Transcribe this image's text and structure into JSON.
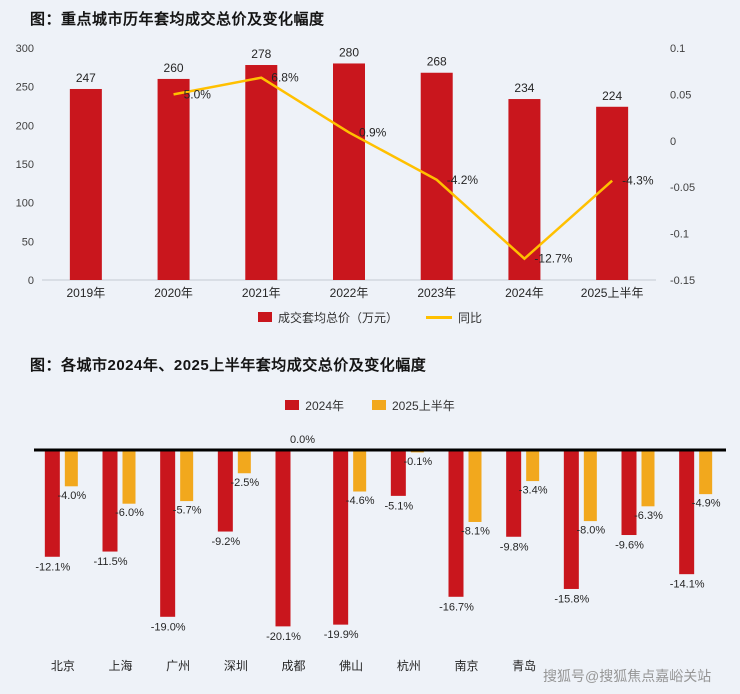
{
  "page": {
    "background": "#eef2f8",
    "watermark": "搜狐号@搜狐焦点嘉峪关站"
  },
  "chart_data": [
    {
      "type": "bar+line",
      "title": "图：重点城市历年套均成交总价及变化幅度",
      "categories": [
        "2019年",
        "2020年",
        "2021年",
        "2022年",
        "2023年",
        "2024年",
        "2025上半年"
      ],
      "bar_series": {
        "name": "成交套均总价（万元）",
        "color": "#c9161d",
        "values": [
          247,
          260,
          278,
          280,
          268,
          234,
          224
        ]
      },
      "line_series": {
        "name": "同比",
        "color": "#ffc000",
        "values": [
          null,
          0.05,
          0.068,
          0.009,
          -0.042,
          -0.127,
          -0.043
        ],
        "labels": [
          "",
          "5.0%",
          "6.8%",
          "0.9%",
          "-4.2%",
          "-12.7%",
          "-4.3%"
        ]
      },
      "left_axis": {
        "min": 0,
        "max": 300,
        "step": 50
      },
      "right_axis": {
        "min": -0.15,
        "max": 0.1,
        "ticks": [
          "0.1",
          "0.05",
          "0",
          "-0.05",
          "-0.1",
          "-0.15"
        ]
      },
      "legend_position": "bottom",
      "grid": false
    },
    {
      "type": "bar",
      "title": "图：各城市2024年、2025上半年套均成交总价及变化幅度",
      "categories": [
        "北京",
        "上海",
        "广州",
        "深圳",
        "成都",
        "佛山",
        "杭州",
        "南京",
        "青岛",
        "",
        "",
        ""
      ],
      "series": [
        {
          "name": "2024年",
          "color": "#c9161d",
          "values": [
            -12.1,
            -11.5,
            -19.0,
            -9.2,
            -20.1,
            -19.9,
            -5.1,
            -16.7,
            -9.8,
            -15.8,
            -9.6,
            -14.1
          ]
        },
        {
          "name": "2025上半年",
          "color": "#f2a81d",
          "values": [
            -4.0,
            -6.0,
            -5.7,
            -2.5,
            0.0,
            -4.6,
            -0.1,
            -8.1,
            -3.4,
            -8.0,
            -6.3,
            -4.9
          ]
        }
      ],
      "unit": "%",
      "ylim": [
        -22,
        0
      ],
      "legend_position": "top",
      "grid": false
    }
  ]
}
